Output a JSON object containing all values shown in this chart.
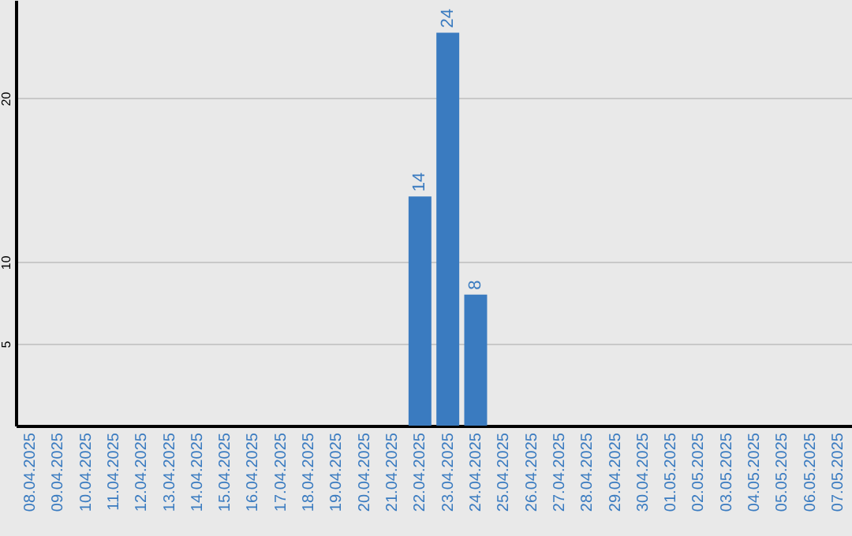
{
  "chart_data": {
    "type": "bar",
    "categories": [
      "08.04.2025",
      "09.04.2025",
      "10.04.2025",
      "11.04.2025",
      "12.04.2025",
      "13.04.2025",
      "14.04.2025",
      "15.04.2025",
      "16.04.2025",
      "17.04.2025",
      "18.04.2025",
      "19.04.2025",
      "20.04.2025",
      "21.04.2025",
      "22.04.2025",
      "23.04.2025",
      "24.04.2025",
      "25.04.2025",
      "26.04.2025",
      "27.04.2025",
      "28.04.2025",
      "29.04.2025",
      "30.04.2025",
      "01.05.2025",
      "02.05.2025",
      "03.05.2025",
      "04.05.2025",
      "05.05.2025",
      "06.05.2025",
      "07.05.2025"
    ],
    "values": [
      0,
      0,
      0,
      0,
      0,
      0,
      0,
      0,
      0,
      0,
      0,
      0,
      0,
      0,
      14,
      24,
      8,
      0,
      0,
      0,
      0,
      0,
      0,
      0,
      0,
      0,
      0,
      0,
      0,
      0
    ],
    "value_labels": [
      null,
      null,
      null,
      null,
      null,
      null,
      null,
      null,
      null,
      null,
      null,
      null,
      null,
      null,
      "14",
      "24",
      "8",
      null,
      null,
      null,
      null,
      null,
      null,
      null,
      null,
      null,
      null,
      null,
      null,
      null
    ],
    "color": "#3a7bc0",
    "ylim": [
      0,
      26
    ],
    "yticks": [
      5,
      10,
      20
    ],
    "grid": "y"
  }
}
